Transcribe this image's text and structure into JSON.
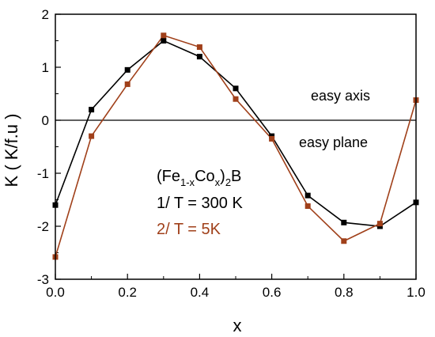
{
  "chart_data": {
    "type": "line",
    "xlabel": "x",
    "ylabel": "K ( K/f.u )",
    "xlim": [
      0.0,
      1.0
    ],
    "ylim": [
      -3,
      2
    ],
    "x_ticks": [
      "0.0",
      "0.2",
      "0.4",
      "0.6",
      "0.8",
      "1.0"
    ],
    "y_ticks": [
      "-3",
      "-2",
      "-1",
      "0",
      "1",
      "2"
    ],
    "x": [
      0.0,
      0.1,
      0.2,
      0.3,
      0.4,
      0.5,
      0.6,
      0.7,
      0.8,
      0.9,
      1.0
    ],
    "series": [
      {
        "name": "1/ T = 300 K",
        "color": "#000000",
        "values": [
          -1.6,
          0.2,
          0.95,
          1.5,
          1.2,
          0.6,
          -0.3,
          -1.42,
          -1.93,
          -2.0,
          -1.55
        ]
      },
      {
        "name": "2/ T = 5K",
        "color": "#a0401a",
        "values": [
          -2.58,
          -0.3,
          0.68,
          1.6,
          1.38,
          0.4,
          -0.35,
          -1.62,
          -2.28,
          -1.95,
          0.38
        ]
      }
    ],
    "reference_line": 0,
    "annotations": {
      "easy_axis": "easy axis",
      "easy_plane": "easy plane"
    },
    "legend": {
      "compound_prefix": "(Fe",
      "compound_sub1": "1-x",
      "compound_mid": "Co",
      "compound_sub2": "x",
      "compound_mid2": ")",
      "compound_sub3": "2",
      "compound_suffix": "B"
    },
    "grid": false
  }
}
